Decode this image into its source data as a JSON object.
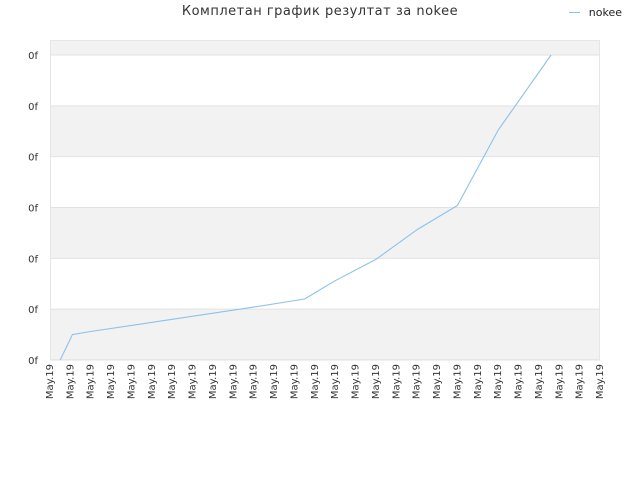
{
  "chart_data": {
    "type": "line",
    "title": "Комплетан график резултат за nokee",
    "xlabel": "",
    "ylabel": "",
    "categories": [
      "May.19",
      "May.19",
      "May.19",
      "May.19",
      "May.19",
      "May.19",
      "May.19",
      "May.19",
      "May.19",
      "May.19",
      "May.19",
      "May.19",
      "May.19",
      "May.19",
      "May.19",
      "May.19",
      "May.19",
      "May.19",
      "May.19",
      "May.19",
      "May.19",
      "May.19",
      "May.19",
      "May.19",
      "May.19",
      "May.19",
      "May.19",
      "May.19"
    ],
    "y_tick_labels": [
      "0f",
      "0f",
      "0f",
      "0f",
      "0f",
      "0f",
      "0f"
    ],
    "ylim": [
      0,
      6
    ],
    "grid": true,
    "legend": "top-right",
    "series": [
      {
        "name": "nokee",
        "color": "#8cc2ec",
        "points": [
          [
            0.5,
            0.0
          ],
          [
            1.1,
            0.5
          ],
          [
            2,
            0.56
          ],
          [
            4,
            0.68
          ],
          [
            6,
            0.8
          ],
          [
            8,
            0.92
          ],
          [
            10,
            1.04
          ],
          [
            12.5,
            1.2
          ],
          [
            14,
            1.56
          ],
          [
            16,
            1.98
          ],
          [
            18,
            2.56
          ],
          [
            20,
            3.04
          ],
          [
            22,
            4.52
          ],
          [
            24.6,
            6.0
          ]
        ]
      }
    ]
  }
}
